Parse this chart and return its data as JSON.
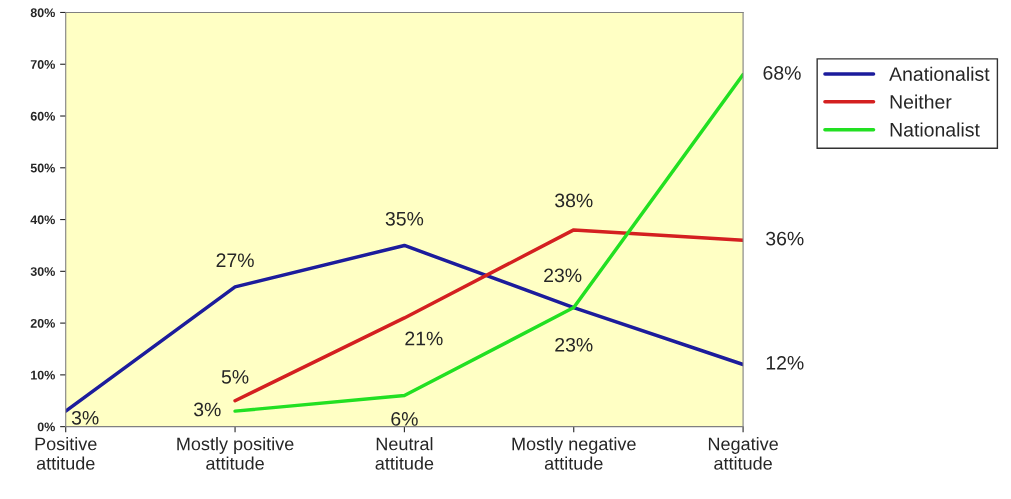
{
  "chart_data": {
    "type": "line",
    "categories": [
      "Positive\nattitude",
      "Mostly positive\nattitude",
      "Neutral\nattitude",
      "Mostly negative\nattitude",
      "Negative\nattitude"
    ],
    "series": [
      {
        "name": "Anationalist",
        "color": "#1c1c9c",
        "values": [
          3,
          27,
          35,
          23,
          12
        ],
        "value_labels": [
          "3%",
          "27%",
          "35%",
          "23%",
          "12%"
        ]
      },
      {
        "name": "Neither",
        "color": "#d42020",
        "values": [
          null,
          5,
          21,
          38,
          36
        ],
        "value_labels": [
          null,
          "5%",
          "21%",
          "38%",
          "36%"
        ]
      },
      {
        "name": "Nationalist",
        "color": "#22e022",
        "values": [
          null,
          3,
          6,
          23,
          68
        ],
        "value_labels": [
          null,
          "3%",
          "6%",
          "23%",
          "68%"
        ]
      }
    ],
    "ylim": [
      0,
      80
    ],
    "yticks": [
      {
        "value": 0,
        "label": "0%"
      },
      {
        "value": 10,
        "label": "10%"
      },
      {
        "value": 20,
        "label": "20%"
      },
      {
        "value": 30,
        "label": "30%"
      },
      {
        "value": 40,
        "label": "40%"
      },
      {
        "value": 50,
        "label": "50%"
      },
      {
        "value": 60,
        "label": "60%"
      },
      {
        "value": 70,
        "label": "70%"
      },
      {
        "value": 80,
        "label": "80%"
      }
    ],
    "grid": false,
    "legend": "right",
    "marker": "none",
    "line_style": "solid"
  }
}
